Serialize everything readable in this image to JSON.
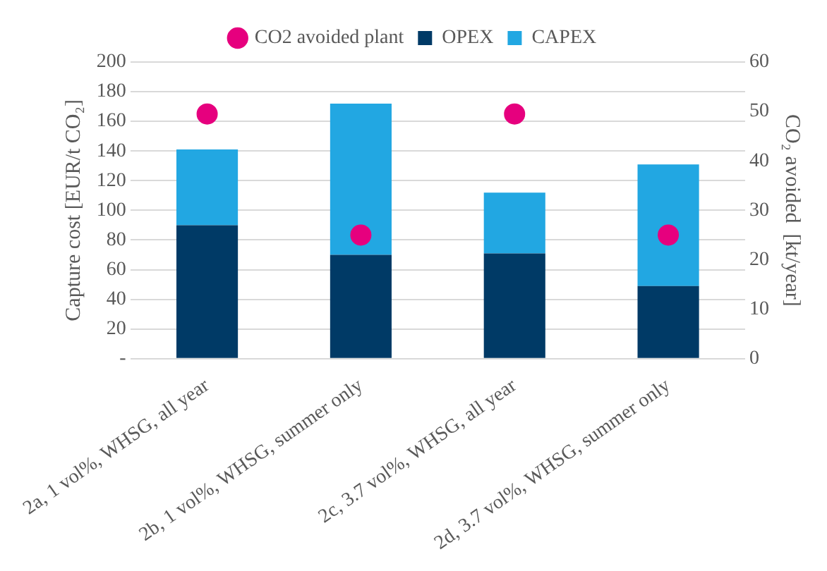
{
  "chart_data": {
    "type": "bar",
    "stacked": true,
    "categories": [
      "2a, 1 vol%, WHSG, all year",
      "2b, 1 vol%, WHSG, summer only",
      "2c, 3.7 vol%, WHSG, all year",
      "2d, 3.7 vol%, WHSG, summer only"
    ],
    "series": [
      {
        "name": "OPEX",
        "color": "#003a66",
        "values": [
          90,
          70,
          71,
          49
        ]
      },
      {
        "name": "CAPEX",
        "color": "#22a7e2",
        "values": [
          51,
          102,
          41,
          82
        ]
      },
      {
        "name": "CO2 avoided plant",
        "type": "scatter",
        "axis": "y2",
        "color": "#e6007e",
        "values": [
          49.5,
          25,
          49.5,
          25
        ]
      }
    ],
    "ylabel": "Capture cost [EUR/t CO₂]",
    "y2label": "CO₂ avoided  [kt/year]",
    "ylim": [
      0,
      200
    ],
    "yticks": [
      {
        "value": 0,
        "label": "-"
      },
      20,
      40,
      60,
      80,
      100,
      120,
      140,
      160,
      180,
      200
    ],
    "y2lim": [
      0,
      60
    ],
    "y2ticks": [
      0,
      10,
      20,
      30,
      40,
      50,
      60
    ],
    "grid": "y",
    "legend": "top",
    "marker": "circle"
  }
}
